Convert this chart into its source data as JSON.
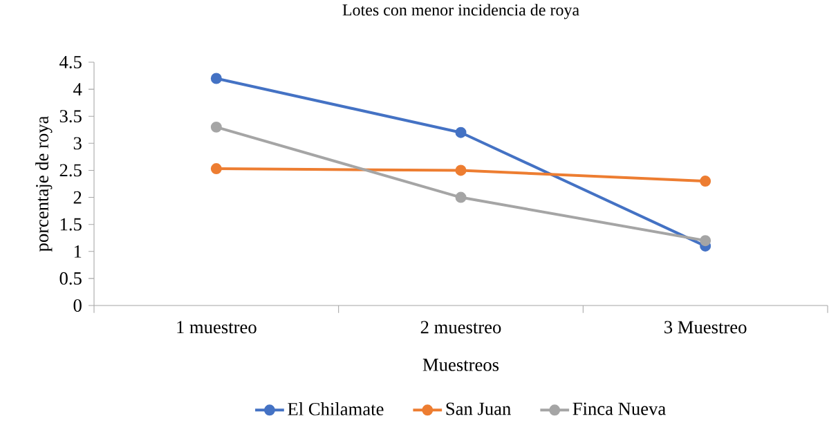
{
  "chart_data": {
    "type": "line",
    "title": "Lotes con menor incidencia de roya",
    "xlabel": "Muestreos",
    "ylabel": "porcentaje de roya",
    "categories": [
      "1 muestreo",
      "2 muestreo",
      "3 Muestreo"
    ],
    "series": [
      {
        "name": "El Chilamate",
        "color": "#4472c4",
        "values": [
          4.2,
          3.2,
          1.1
        ]
      },
      {
        "name": "San Juan",
        "color": "#ed7d31",
        "values": [
          2.53,
          2.5,
          2.3
        ]
      },
      {
        "name": "Finca Nueva",
        "color": "#a5a5a5",
        "values": [
          3.3,
          2.0,
          1.2
        ]
      }
    ],
    "ylim": [
      0,
      4.5
    ],
    "yticks": [
      0,
      0.5,
      1,
      1.5,
      2,
      2.5,
      3,
      3.5,
      4,
      4.5
    ],
    "grid": false,
    "legend": "bottom",
    "marker": "circle",
    "line_style": "solid"
  }
}
